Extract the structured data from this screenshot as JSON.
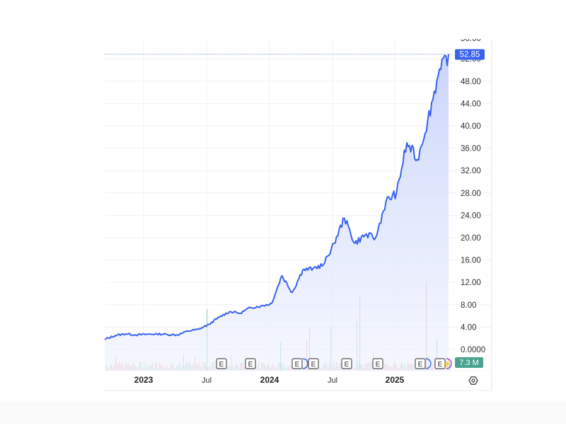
{
  "chart_data": {
    "type": "area",
    "title": "",
    "xlabel": "",
    "ylabel": "",
    "ylim": [
      0,
      54
    ],
    "y_ticks": [
      "0.0000",
      "4.00",
      "8.00",
      "12.00",
      "16.00",
      "20.00",
      "24.00",
      "28.00",
      "32.00",
      "36.00",
      "40.00",
      "44.00",
      "48.00",
      "52.00"
    ],
    "x_ticks": [
      {
        "label": "2023",
        "bold": true
      },
      {
        "label": "Jul",
        "bold": false
      },
      {
        "label": "2024",
        "bold": true
      },
      {
        "label": "Jul",
        "bold": false
      },
      {
        "label": "2025",
        "bold": true
      }
    ],
    "grid": true,
    "last_price": "52.85",
    "last_volume": "7.3 M",
    "series": [
      {
        "name": "Price",
        "color": "#3a62f0",
        "points": [
          [
            "2022-10",
            1.8
          ],
          [
            "2022-11",
            2.5
          ],
          [
            "2022-12",
            2.8
          ],
          [
            "2023-01",
            2.6
          ],
          [
            "2023-02",
            2.7
          ],
          [
            "2023-03",
            2.8
          ],
          [
            "2023-04",
            2.7
          ],
          [
            "2023-05",
            2.6
          ],
          [
            "2023-06",
            3.3
          ],
          [
            "2023-07",
            3.6
          ],
          [
            "2023-08",
            4.5
          ],
          [
            "2023-09",
            5.8
          ],
          [
            "2023-10",
            6.8
          ],
          [
            "2023-11",
            6.5
          ],
          [
            "2023-12",
            7.5
          ],
          [
            "2024-01",
            7.8
          ],
          [
            "2024-02",
            8.2
          ],
          [
            "2024-03",
            13.2
          ],
          [
            "2024-04",
            10.2
          ],
          [
            "2024-05",
            14.2
          ],
          [
            "2024-06",
            14.5
          ],
          [
            "2024-07",
            15.2
          ],
          [
            "2024-08",
            19.0
          ],
          [
            "2024-09",
            23.5
          ],
          [
            "2024-10",
            19.0
          ],
          [
            "2024-11",
            20.5
          ],
          [
            "2024-12",
            20.0
          ],
          [
            "2025-01",
            26.5
          ],
          [
            "2025-02",
            28.0
          ],
          [
            "2025-03",
            37.0
          ],
          [
            "2025-04",
            34.0
          ],
          [
            "2025-05",
            41.0
          ],
          [
            "2025-06",
            49.0
          ],
          [
            "2025-07",
            52.85
          ]
        ]
      }
    ],
    "event_markers": [
      {
        "type": "earnings",
        "label": "E"
      },
      {
        "type": "earnings",
        "label": "E"
      },
      {
        "type": "earnings",
        "label": "E"
      },
      {
        "type": "dividend",
        "label": ""
      },
      {
        "type": "earnings",
        "label": "E"
      },
      {
        "type": "earnings",
        "label": "E"
      },
      {
        "type": "earnings",
        "label": "E"
      },
      {
        "type": "earnings",
        "label": "E"
      },
      {
        "type": "dividend",
        "label": ""
      },
      {
        "type": "earnings",
        "label": "E"
      },
      {
        "type": "split",
        "label": "⚡"
      }
    ],
    "legend_position": "none"
  },
  "axis": {
    "price_badge": "52.85",
    "volume_badge": "7.3 M",
    "settings_icon": "gear-icon"
  },
  "colors": {
    "line": "#3a62f0",
    "fill_top": "#c9d4fb",
    "price_badge": "#3a62f0",
    "volume_badge": "#4aa391",
    "volume_up": "#8fd3c2",
    "volume_down": "#f2a7a7",
    "grid": "#f0f0f0"
  }
}
